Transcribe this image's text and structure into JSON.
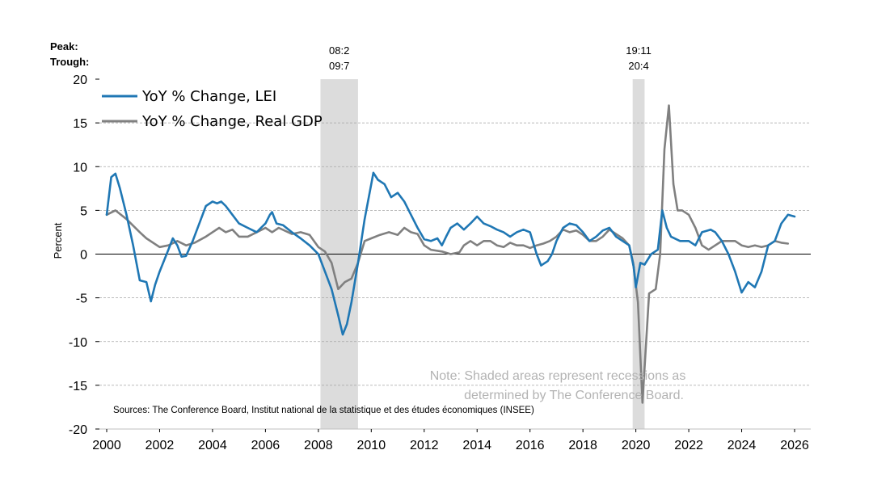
{
  "chart_data": {
    "type": "line",
    "ylabel": "Percent",
    "ylim": [
      -20,
      20
    ],
    "yticks": [
      20,
      15,
      10,
      5,
      0,
      -5,
      -10,
      -15,
      -20
    ],
    "xlim": [
      2000,
      2026
    ],
    "xticks": [
      "2000",
      "2002",
      "2004",
      "2006",
      "2008",
      "2010",
      "2012",
      "2014",
      "2016",
      "2018",
      "2020",
      "2022",
      "2024",
      "2026"
    ],
    "gridlines": "dashed-horizontal",
    "peak_label": "Peak:",
    "trough_label": "Trough:",
    "recessions": [
      {
        "peak": "08:2",
        "trough": "09:7",
        "start": 2008.08,
        "end": 2009.5
      },
      {
        "peak": "19:11",
        "trough": "20:4",
        "start": 2019.88,
        "end": 2020.33
      }
    ],
    "legend_position": "top-left",
    "series": [
      {
        "name": "YoY % Change, LEI",
        "color": "#1f77b4",
        "points": [
          [
            2000.0,
            4.5
          ],
          [
            2000.17,
            8.8
          ],
          [
            2000.33,
            9.2
          ],
          [
            2000.5,
            7.5
          ],
          [
            2000.75,
            4.5
          ],
          [
            2001.0,
            1.0
          ],
          [
            2001.25,
            -3.0
          ],
          [
            2001.5,
            -3.2
          ],
          [
            2001.67,
            -5.4
          ],
          [
            2001.83,
            -3.5
          ],
          [
            2002.0,
            -2.0
          ],
          [
            2002.33,
            0.5
          ],
          [
            2002.5,
            1.8
          ],
          [
            2002.67,
            1.0
          ],
          [
            2002.83,
            -0.3
          ],
          [
            2003.0,
            -0.2
          ],
          [
            2003.25,
            1.5
          ],
          [
            2003.5,
            3.5
          ],
          [
            2003.75,
            5.5
          ],
          [
            2004.0,
            6.0
          ],
          [
            2004.17,
            5.8
          ],
          [
            2004.33,
            6.0
          ],
          [
            2004.5,
            5.5
          ],
          [
            2004.75,
            4.5
          ],
          [
            2005.0,
            3.5
          ],
          [
            2005.33,
            3.0
          ],
          [
            2005.67,
            2.5
          ],
          [
            2005.83,
            3.0
          ],
          [
            2006.0,
            3.5
          ],
          [
            2006.17,
            4.5
          ],
          [
            2006.25,
            4.8
          ],
          [
            2006.42,
            3.5
          ],
          [
            2006.67,
            3.3
          ],
          [
            2007.0,
            2.5
          ],
          [
            2007.33,
            1.8
          ],
          [
            2007.67,
            1.0
          ],
          [
            2008.0,
            0.0
          ],
          [
            2008.25,
            -2.0
          ],
          [
            2008.5,
            -4.0
          ],
          [
            2008.75,
            -7.0
          ],
          [
            2008.92,
            -9.2
          ],
          [
            2009.08,
            -8.0
          ],
          [
            2009.25,
            -5.5
          ],
          [
            2009.5,
            -1.0
          ],
          [
            2009.75,
            4.0
          ],
          [
            2010.0,
            8.0
          ],
          [
            2010.08,
            9.3
          ],
          [
            2010.25,
            8.5
          ],
          [
            2010.5,
            8.0
          ],
          [
            2010.75,
            6.5
          ],
          [
            2011.0,
            7.0
          ],
          [
            2011.25,
            6.0
          ],
          [
            2011.5,
            4.5
          ],
          [
            2011.75,
            3.0
          ],
          [
            2012.0,
            1.7
          ],
          [
            2012.25,
            1.5
          ],
          [
            2012.5,
            1.8
          ],
          [
            2012.67,
            1.0
          ],
          [
            2012.83,
            2.0
          ],
          [
            2013.0,
            3.0
          ],
          [
            2013.25,
            3.5
          ],
          [
            2013.5,
            2.8
          ],
          [
            2013.75,
            3.5
          ],
          [
            2014.0,
            4.3
          ],
          [
            2014.25,
            3.5
          ],
          [
            2014.5,
            3.2
          ],
          [
            2014.75,
            2.8
          ],
          [
            2015.0,
            2.5
          ],
          [
            2015.25,
            2.0
          ],
          [
            2015.5,
            2.5
          ],
          [
            2015.75,
            2.8
          ],
          [
            2016.0,
            2.5
          ],
          [
            2016.25,
            0.0
          ],
          [
            2016.42,
            -1.3
          ],
          [
            2016.67,
            -0.8
          ],
          [
            2016.83,
            0.0
          ],
          [
            2017.0,
            1.5
          ],
          [
            2017.25,
            3.0
          ],
          [
            2017.5,
            3.5
          ],
          [
            2017.75,
            3.3
          ],
          [
            2018.0,
            2.5
          ],
          [
            2018.25,
            1.5
          ],
          [
            2018.5,
            2.0
          ],
          [
            2018.75,
            2.7
          ],
          [
            2019.0,
            3.0
          ],
          [
            2019.25,
            2.0
          ],
          [
            2019.5,
            1.5
          ],
          [
            2019.75,
            1.0
          ],
          [
            2019.92,
            -1.5
          ],
          [
            2020.0,
            -3.8
          ],
          [
            2020.17,
            -1.0
          ],
          [
            2020.33,
            -1.2
          ],
          [
            2020.58,
            0.0
          ],
          [
            2020.83,
            0.5
          ],
          [
            2021.0,
            5.0
          ],
          [
            2021.17,
            3.0
          ],
          [
            2021.33,
            2.0
          ],
          [
            2021.67,
            1.5
          ],
          [
            2022.0,
            1.5
          ],
          [
            2022.25,
            1.0
          ],
          [
            2022.5,
            2.5
          ],
          [
            2022.83,
            2.8
          ],
          [
            2023.0,
            2.5
          ],
          [
            2023.25,
            1.5
          ],
          [
            2023.5,
            0.0
          ],
          [
            2023.75,
            -2.0
          ],
          [
            2024.0,
            -4.4
          ],
          [
            2024.25,
            -3.2
          ],
          [
            2024.5,
            -3.8
          ],
          [
            2024.75,
            -2.0
          ],
          [
            2025.0,
            1.0
          ],
          [
            2025.25,
            1.5
          ],
          [
            2025.5,
            3.5
          ],
          [
            2025.75,
            4.5
          ],
          [
            2026.0,
            4.3
          ]
        ]
      },
      {
        "name": "YoY % Change, Real GDP",
        "color": "#808080",
        "points": [
          [
            2000.0,
            4.5
          ],
          [
            2000.33,
            5.0
          ],
          [
            2000.75,
            4.0
          ],
          [
            2001.25,
            2.5
          ],
          [
            2001.5,
            1.8
          ],
          [
            2002.0,
            0.8
          ],
          [
            2002.33,
            1.0
          ],
          [
            2002.67,
            1.5
          ],
          [
            2003.0,
            1.0
          ],
          [
            2003.33,
            1.3
          ],
          [
            2003.75,
            2.0
          ],
          [
            2004.0,
            2.5
          ],
          [
            2004.25,
            3.0
          ],
          [
            2004.5,
            2.5
          ],
          [
            2004.75,
            2.8
          ],
          [
            2005.0,
            2.0
          ],
          [
            2005.33,
            2.0
          ],
          [
            2005.67,
            2.5
          ],
          [
            2006.0,
            3.0
          ],
          [
            2006.25,
            2.5
          ],
          [
            2006.5,
            3.0
          ],
          [
            2007.0,
            2.3
          ],
          [
            2007.33,
            2.5
          ],
          [
            2007.67,
            2.2
          ],
          [
            2008.0,
            0.8
          ],
          [
            2008.25,
            0.3
          ],
          [
            2008.5,
            -1.0
          ],
          [
            2008.75,
            -4.0
          ],
          [
            2009.0,
            -3.2
          ],
          [
            2009.25,
            -2.8
          ],
          [
            2009.5,
            -1.0
          ],
          [
            2009.75,
            1.5
          ],
          [
            2010.0,
            1.8
          ],
          [
            2010.33,
            2.2
          ],
          [
            2010.67,
            2.5
          ],
          [
            2011.0,
            2.2
          ],
          [
            2011.25,
            3.0
          ],
          [
            2011.5,
            2.5
          ],
          [
            2011.75,
            2.3
          ],
          [
            2012.0,
            1.0
          ],
          [
            2012.25,
            0.5
          ],
          [
            2012.67,
            0.3
          ],
          [
            2013.0,
            0.0
          ],
          [
            2013.33,
            0.2
          ],
          [
            2013.5,
            1.0
          ],
          [
            2013.75,
            1.5
          ],
          [
            2014.0,
            1.0
          ],
          [
            2014.25,
            1.5
          ],
          [
            2014.5,
            1.5
          ],
          [
            2014.75,
            1.0
          ],
          [
            2015.0,
            0.8
          ],
          [
            2015.25,
            1.3
          ],
          [
            2015.5,
            1.0
          ],
          [
            2015.75,
            1.0
          ],
          [
            2016.0,
            0.7
          ],
          [
            2016.25,
            1.0
          ],
          [
            2016.5,
            1.2
          ],
          [
            2016.75,
            1.5
          ],
          [
            2017.0,
            2.0
          ],
          [
            2017.25,
            2.8
          ],
          [
            2017.5,
            2.5
          ],
          [
            2017.75,
            2.7
          ],
          [
            2018.0,
            2.2
          ],
          [
            2018.25,
            1.5
          ],
          [
            2018.5,
            1.5
          ],
          [
            2018.75,
            2.0
          ],
          [
            2019.0,
            2.8
          ],
          [
            2019.25,
            2.3
          ],
          [
            2019.5,
            1.8
          ],
          [
            2019.75,
            1.0
          ],
          [
            2019.9,
            -1.0
          ],
          [
            2020.08,
            -5.5
          ],
          [
            2020.25,
            -17.0
          ],
          [
            2020.5,
            -4.5
          ],
          [
            2020.75,
            -4.0
          ],
          [
            2020.92,
            0.0
          ],
          [
            2021.08,
            12.0
          ],
          [
            2021.25,
            17.0
          ],
          [
            2021.42,
            8.0
          ],
          [
            2021.58,
            5.0
          ],
          [
            2021.75,
            5.0
          ],
          [
            2022.0,
            4.5
          ],
          [
            2022.25,
            3.0
          ],
          [
            2022.5,
            1.0
          ],
          [
            2022.75,
            0.5
          ],
          [
            2023.0,
            1.0
          ],
          [
            2023.25,
            1.5
          ],
          [
            2023.5,
            1.5
          ],
          [
            2023.75,
            1.5
          ],
          [
            2024.0,
            1.0
          ],
          [
            2024.25,
            0.8
          ],
          [
            2024.5,
            1.0
          ],
          [
            2024.75,
            0.8
          ],
          [
            2025.0,
            1.0
          ],
          [
            2025.25,
            1.5
          ],
          [
            2025.5,
            1.3
          ],
          [
            2025.75,
            1.2
          ]
        ]
      }
    ],
    "source": "Sources: The Conference Board, Institut national de la statistique et des études économiques (INSEE)",
    "note_line1": "Note: Shaded areas represent recessions as",
    "note_line2": "determined by The Conference Board."
  }
}
